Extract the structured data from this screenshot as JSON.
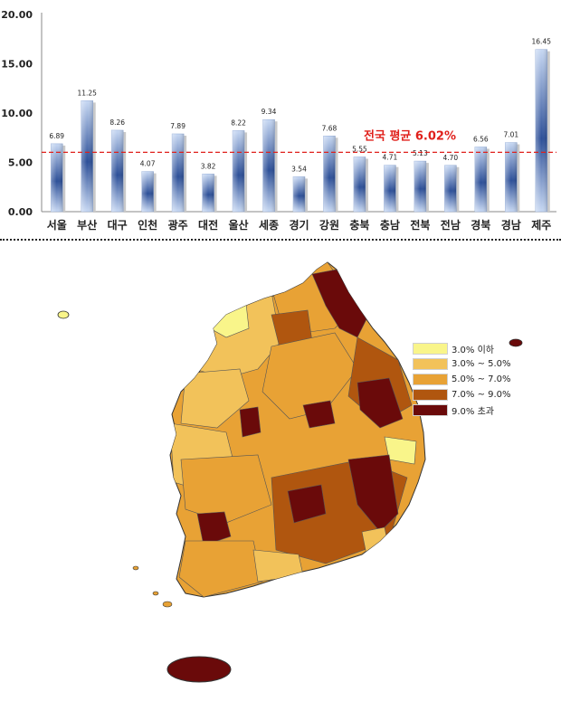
{
  "chart_data": {
    "type": "bar",
    "categories": [
      "서울",
      "부산",
      "대구",
      "인천",
      "광주",
      "대전",
      "울산",
      "세종",
      "경기",
      "강원",
      "충북",
      "충남",
      "전북",
      "전남",
      "경북",
      "경남",
      "제주"
    ],
    "values": [
      6.89,
      11.25,
      8.26,
      4.07,
      7.89,
      3.82,
      8.22,
      9.34,
      3.54,
      7.68,
      5.55,
      4.71,
      5.13,
      4.7,
      6.56,
      7.01,
      16.45
    ],
    "value_labels": [
      "6.89",
      "11.25",
      "8.26",
      "4.07",
      "7.89",
      "3.82",
      "8.22",
      "9.34",
      "3.54",
      "7.68",
      "5.55",
      "4.71",
      "5.13",
      "4.70",
      "6.56",
      "7.01",
      "16.45"
    ],
    "y_ticks": [
      "0.00",
      "5.00",
      "10.00",
      "15.00",
      "20.00"
    ],
    "ylim": [
      0,
      20
    ],
    "average": {
      "value": 6.02,
      "label": "전국 평균 6.02%"
    },
    "colors": {
      "bar_dark": "#1f3f86",
      "bar_light": "#bcd0f0",
      "average_line": "#e0201b"
    },
    "grid": false
  },
  "map": {
    "legend": [
      {
        "label": "3.0% 이하",
        "color": "#f9f58a"
      },
      {
        "label": "3.0% ~ 5.0%",
        "color": "#f2c25a"
      },
      {
        "label": "5.0% ~ 7.0%",
        "color": "#e8a235"
      },
      {
        "label": "7.0% ~ 9.0%",
        "color": "#b0560f"
      },
      {
        "label": "9.0% 초과",
        "color": "#6a0a0a"
      }
    ]
  }
}
